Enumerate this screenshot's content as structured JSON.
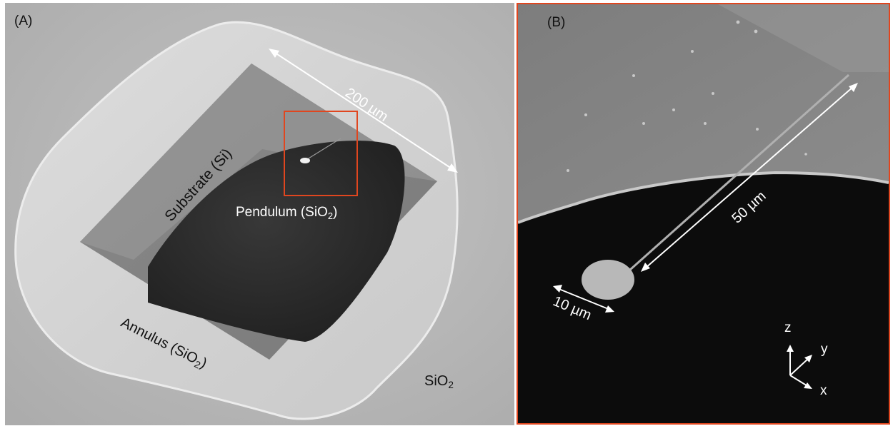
{
  "panel_a": {
    "label": "(A)",
    "scale_label": "200 µm",
    "substrate_label": "Substrate (Si)",
    "pendulum_label": "Pendulum (SiO",
    "pendulum_sub": "2",
    "pendulum_close": ")",
    "annulus_label": "Annulus (SiO",
    "annulus_sub": "2",
    "annulus_close": ")",
    "sio2_label": "SiO",
    "sio2_sub": "2"
  },
  "panel_b": {
    "label": "(B)",
    "length_label": "50 µm",
    "diameter_label": "10 µm",
    "axis_z": "z",
    "axis_y": "y",
    "axis_x": "x"
  },
  "colors": {
    "zoom_box": "#e0461f",
    "panel_b_border": "#e0461f"
  }
}
